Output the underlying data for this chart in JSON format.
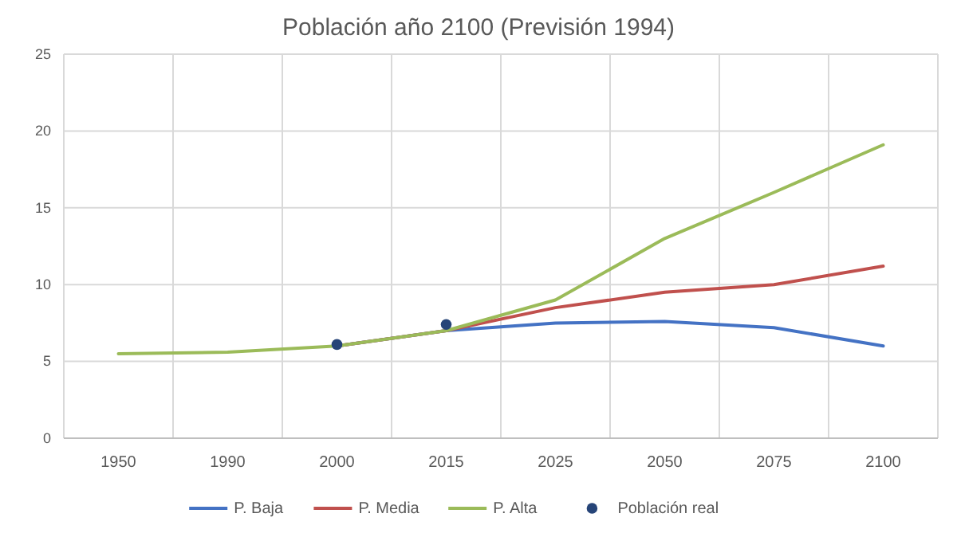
{
  "chart_data": {
    "type": "line",
    "title": "Población año 2100 (Previsión 1994)",
    "categories": [
      "1950",
      "1990",
      "2000",
      "2015",
      "2025",
      "2050",
      "2075",
      "2100"
    ],
    "series": [
      {
        "name": "P. Baja",
        "color": "#4472c4",
        "values": [
          null,
          null,
          6.0,
          7.0,
          7.5,
          7.6,
          7.2,
          6.0
        ]
      },
      {
        "name": "P. Media",
        "color": "#c0504d",
        "values": [
          null,
          null,
          6.0,
          7.0,
          8.5,
          9.5,
          10.0,
          11.2
        ]
      },
      {
        "name": "P. Alta",
        "color": "#9bbb59",
        "values": [
          5.5,
          5.6,
          6.0,
          7.0,
          9.0,
          13.0,
          16.0,
          19.1
        ]
      },
      {
        "name": "Población real",
        "type": "scatter",
        "color": "#264478",
        "marker": "circle",
        "values": [
          null,
          null,
          6.1,
          7.4,
          null,
          null,
          null,
          null
        ]
      }
    ],
    "ylim": [
      0,
      25
    ],
    "yticks": [
      0,
      5,
      10,
      15,
      20,
      25
    ],
    "grid": true,
    "legend": "bottom",
    "marker": "none"
  }
}
